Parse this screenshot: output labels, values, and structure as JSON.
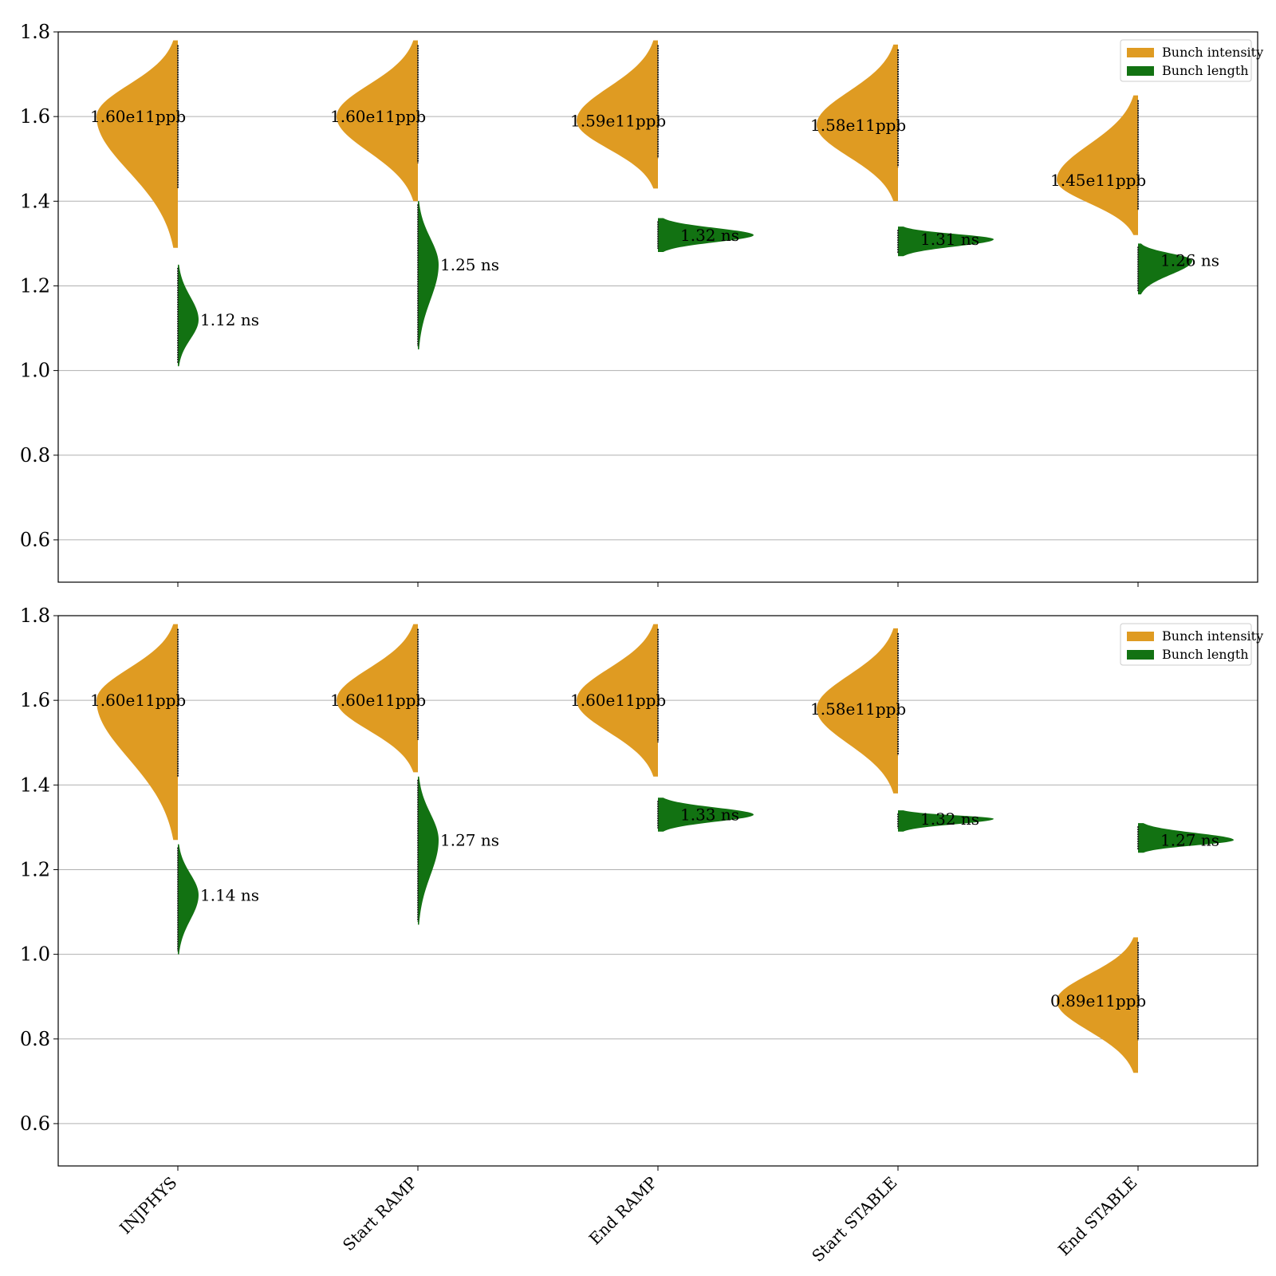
{
  "colors": {
    "intensity": "#df9b22",
    "length": "#127212",
    "grid": "#b0b0b0",
    "axis": "#000000",
    "strip": "#1e1e1e"
  },
  "chart_data": [
    {
      "type": "violin",
      "title": "",
      "xlabel": "",
      "ylabel": "",
      "ylim": [
        0.5,
        1.8
      ],
      "yticks": [
        0.6,
        0.8,
        1.0,
        1.2,
        1.4,
        1.6,
        1.8
      ],
      "ytick_labels": [
        "0.6",
        "0.8",
        "1.0",
        "1.2",
        "1.4",
        "1.6",
        "1.8"
      ],
      "grid": "y",
      "legend_position": "top-right",
      "categories": [
        "INJPHYS",
        "Start RAMP",
        "End RAMP",
        "Start STABLE",
        "End STABLE"
      ],
      "series": [
        {
          "name": "Bunch intensity",
          "side": "left",
          "medians": [
            1.6,
            1.6,
            1.59,
            1.58,
            1.45
          ],
          "labels": [
            "1.60e11ppb",
            "1.60e11ppb",
            "1.59e11ppb",
            "1.58e11ppb",
            "1.45e11ppb"
          ],
          "ranges": [
            [
              1.29,
              1.78
            ],
            [
              1.4,
              1.78
            ],
            [
              1.43,
              1.78
            ],
            [
              1.4,
              1.77
            ],
            [
              1.32,
              1.65
            ]
          ]
        },
        {
          "name": "Bunch length",
          "side": "right",
          "medians": [
            1.12,
            1.25,
            1.32,
            1.31,
            1.26
          ],
          "labels": [
            "1.12 ns",
            "1.25 ns",
            "1.32 ns",
            "1.31 ns",
            "1.26 ns"
          ],
          "ranges": [
            [
              1.01,
              1.25
            ],
            [
              1.05,
              1.4
            ],
            [
              1.28,
              1.36
            ],
            [
              1.27,
              1.34
            ],
            [
              1.18,
              1.3
            ]
          ]
        }
      ]
    },
    {
      "type": "violin",
      "title": "",
      "xlabel": "",
      "ylabel": "",
      "ylim": [
        0.5,
        1.8
      ],
      "yticks": [
        0.6,
        0.8,
        1.0,
        1.2,
        1.4,
        1.6,
        1.8
      ],
      "ytick_labels": [
        "0.6",
        "0.8",
        "1.0",
        "1.2",
        "1.4",
        "1.6",
        "1.8"
      ],
      "grid": "y",
      "legend_position": "top-right",
      "categories": [
        "INJPHYS",
        "Start RAMP",
        "End RAMP",
        "Start STABLE",
        "End STABLE"
      ],
      "series": [
        {
          "name": "Bunch intensity",
          "side": "left",
          "medians": [
            1.6,
            1.6,
            1.6,
            1.58,
            0.89
          ],
          "labels": [
            "1.60e11ppb",
            "1.60e11ppb",
            "1.60e11ppb",
            "1.58e11ppb",
            "0.89e11ppb"
          ],
          "ranges": [
            [
              1.27,
              1.78
            ],
            [
              1.43,
              1.78
            ],
            [
              1.42,
              1.78
            ],
            [
              1.38,
              1.77
            ],
            [
              0.72,
              1.04
            ]
          ]
        },
        {
          "name": "Bunch length",
          "side": "right",
          "medians": [
            1.14,
            1.27,
            1.33,
            1.32,
            1.27
          ],
          "labels": [
            "1.14 ns",
            "1.27 ns",
            "1.33 ns",
            "1.32 ns",
            "1.27 ns"
          ],
          "ranges": [
            [
              1.0,
              1.26
            ],
            [
              1.07,
              1.42
            ],
            [
              1.29,
              1.37
            ],
            [
              1.29,
              1.34
            ],
            [
              1.24,
              1.31
            ]
          ]
        }
      ]
    }
  ]
}
